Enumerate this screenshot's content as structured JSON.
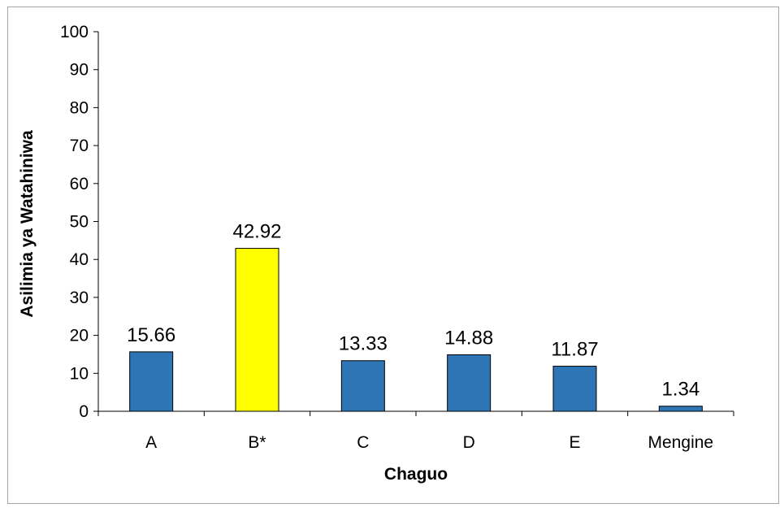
{
  "chart_data": {
    "type": "bar",
    "categories": [
      "A",
      "B*",
      "C",
      "D",
      "E",
      "Mengine"
    ],
    "values": [
      15.66,
      42.92,
      13.33,
      14.88,
      11.87,
      1.34
    ],
    "data_labels": [
      "15.66",
      "42.92",
      "13.33",
      "14.88",
      "11.87",
      "1.34"
    ],
    "xlabel": "Chaguo",
    "ylabel": "Asilimia ya Watahiniwa",
    "ylim": [
      0,
      100
    ],
    "yticks": [
      0,
      10,
      20,
      30,
      40,
      50,
      60,
      70,
      80,
      90,
      100
    ],
    "grid": false,
    "legend": "none",
    "colors": {
      "bar": "#2e75b6",
      "highlight": "#ffff00",
      "bar_border": "#000000"
    },
    "highlight_index": 1
  }
}
